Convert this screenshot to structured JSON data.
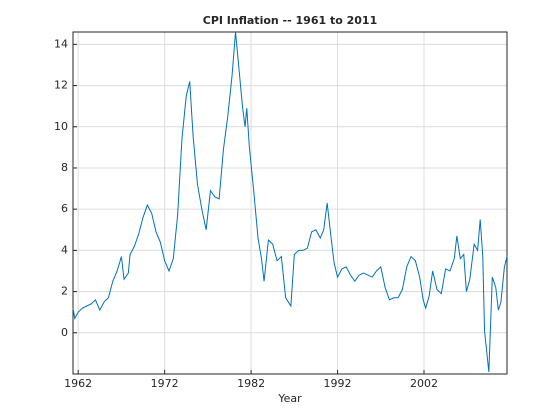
{
  "chart_data": {
    "type": "line",
    "title": "CPI Inflation -- 1961 to 2011",
    "xlabel": "Year",
    "x": [
      1961.4,
      1961.6,
      1962,
      1962.5,
      1963,
      1963.5,
      1964,
      1964.5,
      1965,
      1965.5,
      1966,
      1966.5,
      1967,
      1967.3,
      1967.8,
      1968,
      1968.5,
      1969,
      1969.5,
      1970,
      1970.5,
      1971,
      1971.5,
      1972,
      1972.5,
      1973,
      1973.5,
      1974,
      1974.5,
      1974.9,
      1975.3,
      1975.8,
      1976.3,
      1976.8,
      1977.3,
      1977.8,
      1978.3,
      1978.8,
      1979.3,
      1979.8,
      1980.2,
      1980.6,
      1981,
      1981.3,
      1981.5,
      1981.8,
      1982.3,
      1982.8,
      1983.2,
      1983.5,
      1984,
      1984.5,
      1985,
      1985.5,
      1986,
      1986.6,
      1987,
      1987.5,
      1988,
      1988.5,
      1989,
      1989.5,
      1990,
      1990.4,
      1990.8,
      1991.2,
      1991.6,
      1992,
      1992.5,
      1993,
      1993.5,
      1994,
      1994.5,
      1995,
      1995.5,
      1996,
      1996.5,
      1997,
      1997.5,
      1998,
      1998.5,
      1999,
      1999.5,
      2000,
      2000.5,
      2001,
      2001.5,
      2001.9,
      2002.2,
      2002.6,
      2003,
      2003.5,
      2004,
      2004.5,
      2005,
      2005.5,
      2005.8,
      2006.2,
      2006.6,
      2006.9,
      2007.3,
      2007.8,
      2008.2,
      2008.5,
      2008.8,
      2009,
      2009.5,
      2009.9,
      2010.3,
      2010.6,
      2010.9,
      2011.3,
      2011.6
    ],
    "series": [
      {
        "name": "CPI",
        "color": "#0072bd",
        "values": [
          1.2,
          0.7,
          1.0,
          1.2,
          1.3,
          1.4,
          1.6,
          1.1,
          1.5,
          1.7,
          2.5,
          3.0,
          3.7,
          2.6,
          2.9,
          3.8,
          4.2,
          4.8,
          5.6,
          6.2,
          5.8,
          4.9,
          4.4,
          3.5,
          3.0,
          3.6,
          5.7,
          9.4,
          11.5,
          12.2,
          9.5,
          7.2,
          6.0,
          5.0,
          6.9,
          6.6,
          6.5,
          8.9,
          10.5,
          12.5,
          14.6,
          12.8,
          11.0,
          10.0,
          10.9,
          9.0,
          6.9,
          4.6,
          3.6,
          2.5,
          4.5,
          4.3,
          3.5,
          3.7,
          1.7,
          1.3,
          3.8,
          4.0,
          4.0,
          4.1,
          4.9,
          5.0,
          4.6,
          5.0,
          6.3,
          4.8,
          3.4,
          2.7,
          3.1,
          3.2,
          2.8,
          2.5,
          2.8,
          2.9,
          2.8,
          2.7,
          3.0,
          3.2,
          2.2,
          1.6,
          1.7,
          1.7,
          2.1,
          3.2,
          3.7,
          3.5,
          2.7,
          1.6,
          1.2,
          1.8,
          3.0,
          2.1,
          1.9,
          3.1,
          3.0,
          3.6,
          4.7,
          3.6,
          3.8,
          2.0,
          2.6,
          4.3,
          4.0,
          5.5,
          3.7,
          0.1,
          -1.9,
          2.7,
          2.2,
          1.1,
          1.5,
          3.2,
          3.7
        ]
      }
    ],
    "xlim": [
      1961.4,
      2011.6
    ],
    "xticks": [
      1962,
      1972,
      1982,
      1992,
      2002
    ],
    "ylim": [
      -2,
      14.6
    ],
    "yticks": [
      0,
      2,
      4,
      6,
      8,
      10,
      12,
      14
    ],
    "grid": true
  }
}
